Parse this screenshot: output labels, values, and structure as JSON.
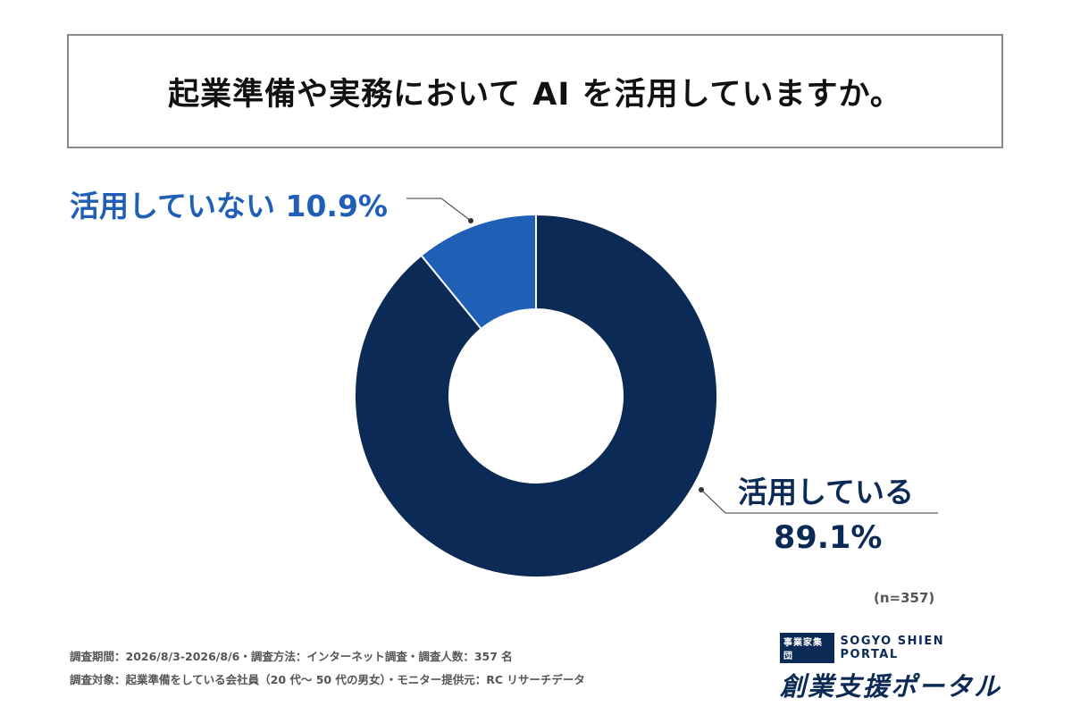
{
  "chart_data": {
    "type": "pie",
    "title": "起業準備や実務において AI を活用していますか。",
    "categories": [
      "活用している",
      "活用していない"
    ],
    "values": [
      89.1,
      10.9
    ],
    "value_labels": [
      "89.1%",
      "10.9%"
    ],
    "colors": [
      "#0b2a55",
      "#1f5fb5"
    ],
    "donut": true,
    "legend": "none",
    "sample_size": "(n=357)"
  },
  "labels": {
    "not_using": "活用していない 10.9%",
    "using_name": "活用している",
    "using_value": "89.1%"
  },
  "footer": {
    "line1": "調査期間：2026/8/3-2026/8/6・調査方法：インターネット調査・調査人数：357 名",
    "line2": "調査対象：起業準備をしている会社員（20 代〜 50 代の男女）・モニター提供元：RC リサーチデータ"
  },
  "logo": {
    "badge": "事業家集団",
    "english": "SOGYO SHIEN PORTAL",
    "japanese": "創業支援ポータル"
  }
}
